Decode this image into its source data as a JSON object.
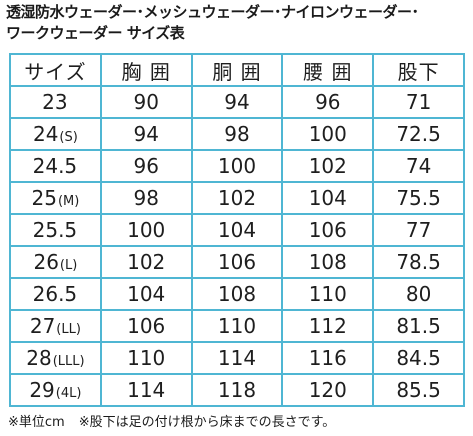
{
  "title": {
    "line1": "透湿防水ウェーダー･メッシュウェーダー･ナイロンウェーダー･",
    "line2": "ワークウェーダー サイズ表"
  },
  "table": {
    "headers": [
      "サイズ",
      "胸 囲",
      "胴 囲",
      "腰 囲",
      "股下"
    ],
    "rows": [
      {
        "size": "23",
        "suffix": "",
        "chest": "90",
        "waist": "94",
        "hip": "96",
        "inseam": "71"
      },
      {
        "size": "24",
        "suffix": "(S)",
        "chest": "94",
        "waist": "98",
        "hip": "100",
        "inseam": "72.5"
      },
      {
        "size": "24.5",
        "suffix": "",
        "chest": "96",
        "waist": "100",
        "hip": "102",
        "inseam": "74"
      },
      {
        "size": "25",
        "suffix": "(M)",
        "chest": "98",
        "waist": "102",
        "hip": "104",
        "inseam": "75.5"
      },
      {
        "size": "25.5",
        "suffix": "",
        "chest": "100",
        "waist": "104",
        "hip": "106",
        "inseam": "77"
      },
      {
        "size": "26",
        "suffix": "(L)",
        "chest": "102",
        "waist": "106",
        "hip": "108",
        "inseam": "78.5"
      },
      {
        "size": "26.5",
        "suffix": "",
        "chest": "104",
        "waist": "108",
        "hip": "110",
        "inseam": "80"
      },
      {
        "size": "27",
        "suffix": "(LL)",
        "chest": "106",
        "waist": "110",
        "hip": "112",
        "inseam": "81.5"
      },
      {
        "size": "28",
        "suffix": "(LLL)",
        "chest": "110",
        "waist": "114",
        "hip": "116",
        "inseam": "84.5"
      },
      {
        "size": "29",
        "suffix": "(4L)",
        "chest": "114",
        "waist": "118",
        "hip": "120",
        "inseam": "85.5"
      }
    ]
  },
  "footnote": {
    "unit": "※単位cm",
    "inseam_note": "※股下は足の付け根から床までの長さです。"
  },
  "colors": {
    "border": "#4fb6d3",
    "text": "#1e1e1e"
  }
}
